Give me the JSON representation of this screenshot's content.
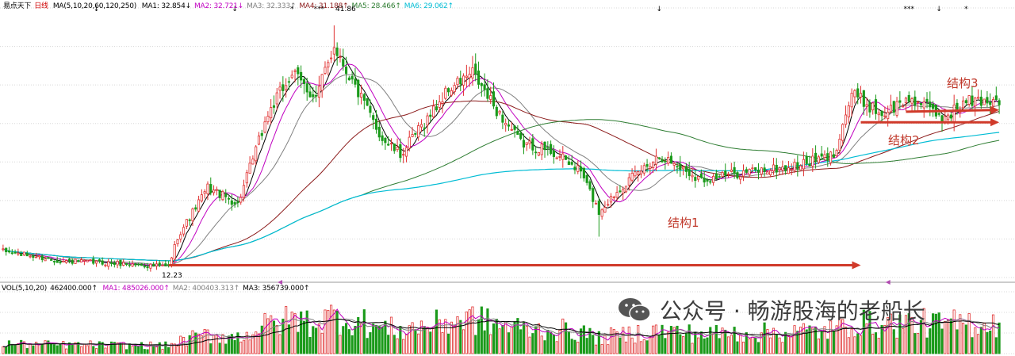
{
  "main_legend": {
    "stock_name": "易点天下",
    "period": "日线",
    "ma_params": "MA(5,10,20,60,120,250)",
    "items": [
      {
        "label": "MA1: 32.854↓",
        "color": "#000000"
      },
      {
        "label": "MA2: 32.721↓",
        "color": "#c000c0"
      },
      {
        "label": "MA3: 32.333↑",
        "color": "#808080"
      },
      {
        "label": "MA4: 31.188↑",
        "color": "#8b1a1a"
      },
      {
        "label": "MA5: 28.466↑",
        "color": "#2e7d32"
      },
      {
        "label": "MA6: 29.062↑",
        "color": "#00bcd4"
      }
    ]
  },
  "volume_legend": {
    "title": "VOL(5,10,20)",
    "value": "462400.000↑",
    "items": [
      {
        "label": "MA1: 485026.000↑",
        "color": "#c000c0"
      },
      {
        "label": "MA2: 400403.313↑",
        "color": "#808080"
      },
      {
        "label": "MA3: 356739.000↑",
        "color": "#000000"
      }
    ]
  },
  "annotations": {
    "structure1": "结构1",
    "structure2": "结构2",
    "structure3": "结构3"
  },
  "price_marks": {
    "high": "41.86",
    "low": "12.23"
  },
  "watermark": {
    "text": "公众号 · 畅游股海的老船长",
    "icon": "wechat-icon"
  },
  "colors": {
    "up": "#e03030",
    "down": "#1a9a1a",
    "arrow": "#d03a2a",
    "grid": "#d8d8d8"
  },
  "chart_data": {
    "type": "candlestick",
    "ylim": [
      11,
      44
    ],
    "events": [
      {
        "i": 0,
        "c": 14.2
      },
      {
        "i": 20,
        "c": 13.0
      },
      {
        "i": 40,
        "c": 12.7
      },
      {
        "i": 55,
        "c": 12.3
      },
      {
        "i": 58,
        "c": 16.0
      },
      {
        "i": 68,
        "c": 22.0
      },
      {
        "i": 78,
        "c": 20.0
      },
      {
        "i": 88,
        "c": 31.0
      },
      {
        "i": 96,
        "c": 36.0
      },
      {
        "i": 104,
        "c": 33.0
      },
      {
        "i": 110,
        "c": 39.5
      },
      {
        "i": 116,
        "c": 35.0
      },
      {
        "i": 126,
        "c": 28.0
      },
      {
        "i": 132,
        "c": 26.0
      },
      {
        "i": 140,
        "c": 30.0
      },
      {
        "i": 148,
        "c": 34.0
      },
      {
        "i": 156,
        "c": 36.0
      },
      {
        "i": 163,
        "c": 32.0
      },
      {
        "i": 172,
        "c": 27.5
      },
      {
        "i": 182,
        "c": 26.5
      },
      {
        "i": 192,
        "c": 24.0
      },
      {
        "i": 198,
        "c": 19.0
      },
      {
        "i": 205,
        "c": 22.0
      },
      {
        "i": 218,
        "c": 26.0
      },
      {
        "i": 232,
        "c": 23.0
      },
      {
        "i": 248,
        "c": 24.0
      },
      {
        "i": 262,
        "c": 24.5
      },
      {
        "i": 276,
        "c": 26.0
      },
      {
        "i": 282,
        "c": 33.5
      },
      {
        "i": 292,
        "c": 31.0
      },
      {
        "i": 302,
        "c": 33.0
      },
      {
        "i": 312,
        "c": 30.5
      },
      {
        "i": 320,
        "c": 32.5
      },
      {
        "i": 331,
        "c": 32.8
      }
    ],
    "count": 332,
    "volume_ylim": [
      0,
      1000000
    ],
    "arrows": [
      {
        "from": [
          55,
          12.5
        ],
        "to": [
          285,
          12.5
        ]
      },
      {
        "from": [
          285,
          30.0
        ],
        "to": [
          331,
          30.0
        ]
      },
      {
        "from": [
          300,
          31.3
        ],
        "to": [
          331,
          31.5
        ]
      }
    ]
  }
}
